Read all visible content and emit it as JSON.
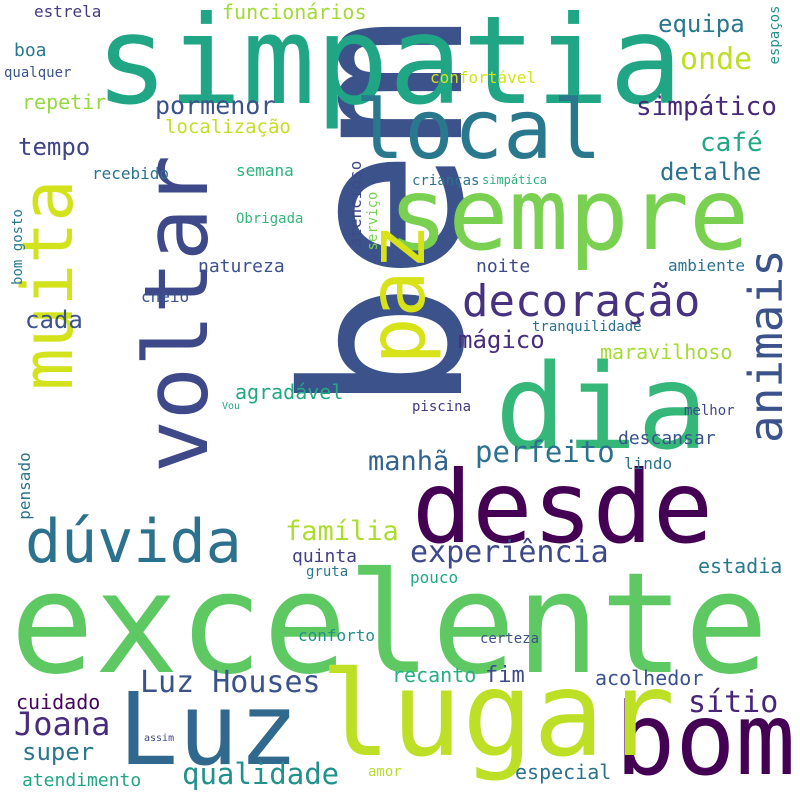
{
  "words": [
    {
      "text": "bem",
      "color": "#3b528b"
    },
    {
      "text": "excelente",
      "color": "#5ec962"
    },
    {
      "text": "simpatia",
      "color": "#21a685"
    },
    {
      "text": "sempre",
      "color": "#7ad151"
    },
    {
      "text": "dia",
      "color": "#35b779"
    },
    {
      "text": "desde",
      "color": "#440154"
    },
    {
      "text": "local",
      "color": "#2a788e"
    },
    {
      "text": "bom",
      "color": "#440154"
    },
    {
      "text": "lugar",
      "color": "#bddf26"
    },
    {
      "text": "Luz",
      "color": "#31688e"
    },
    {
      "text": "muita",
      "color": "#d2e21b"
    },
    {
      "text": "voltar",
      "color": "#3e4989"
    },
    {
      "text": "paz",
      "color": "#d8e219"
    },
    {
      "text": "dúvida",
      "color": "#2c728e"
    },
    {
      "text": "decoração",
      "color": "#46327e"
    },
    {
      "text": "animais",
      "color": "#3b528b"
    },
    {
      "text": "experiência",
      "color": "#3e4989"
    },
    {
      "text": "Luz Houses",
      "color": "#3b528b"
    },
    {
      "text": "Joana",
      "color": "#472d7b"
    },
    {
      "text": "qualidade",
      "color": "#21918c"
    },
    {
      "text": "perfeito",
      "color": "#2c728e"
    },
    {
      "text": "família",
      "color": "#addc30"
    },
    {
      "text": "manhã",
      "color": "#33638d"
    },
    {
      "text": "simpático",
      "color": "#482878"
    },
    {
      "text": "pormenor",
      "color": "#3b528b"
    },
    {
      "text": "café",
      "color": "#22a884"
    },
    {
      "text": "onde",
      "color": "#bddf26"
    },
    {
      "text": "equipa",
      "color": "#2a788e"
    },
    {
      "text": "detalhe",
      "color": "#2c728e"
    },
    {
      "text": "localização",
      "color": "#c2df23"
    },
    {
      "text": "funcionários",
      "color": "#a2da37"
    },
    {
      "text": "tempo",
      "color": "#414487"
    },
    {
      "text": "repetir",
      "color": "#95d840"
    },
    {
      "text": "mágico",
      "color": "#472c7a"
    },
    {
      "text": "maravilhoso",
      "color": "#a5db36"
    },
    {
      "text": "cada",
      "color": "#3b528b"
    },
    {
      "text": "super",
      "color": "#2a788e"
    },
    {
      "text": "cuidado",
      "color": "#450559"
    },
    {
      "text": "atendimento",
      "color": "#21a685"
    },
    {
      "text": "sítio",
      "color": "#482677"
    },
    {
      "text": "acolhedor",
      "color": "#3b528b"
    },
    {
      "text": "recanto",
      "color": "#28ae80"
    },
    {
      "text": "fim",
      "color": "#3e4989"
    },
    {
      "text": "especial",
      "color": "#2c728e"
    },
    {
      "text": "estadia",
      "color": "#2a788e"
    },
    {
      "text": "descansar",
      "color": "#3b528b"
    },
    {
      "text": "quinta",
      "color": "#433e85"
    },
    {
      "text": "agradável",
      "color": "#22a884"
    },
    {
      "text": "natureza",
      "color": "#3b528b"
    },
    {
      "text": "ambiente",
      "color": "#2c728e"
    },
    {
      "text": "noite",
      "color": "#3e4989"
    },
    {
      "text": "confortável",
      "color": "#d2e21b"
    },
    {
      "text": "pensado",
      "color": "#2c728e"
    },
    {
      "text": "estrela",
      "color": "#443983"
    },
    {
      "text": "boa",
      "color": "#2a788e"
    },
    {
      "text": "qualquer",
      "color": "#3b528b"
    },
    {
      "text": "espaços",
      "color": "#21918c"
    },
    {
      "text": "serviço",
      "color": "#7ad151"
    },
    {
      "text": "atencioso",
      "color": "#3e4989"
    },
    {
      "text": "Obrigada",
      "color": "#35b779"
    },
    {
      "text": "semana",
      "color": "#2db27d"
    },
    {
      "text": "recebido",
      "color": "#2c728e"
    },
    {
      "text": "cheio",
      "color": "#3b528b"
    },
    {
      "text": "lindo",
      "color": "#2c728e"
    },
    {
      "text": "melhor",
      "color": "#3e4989"
    },
    {
      "text": "piscina",
      "color": "#443983"
    },
    {
      "text": "pouco",
      "color": "#22a884"
    },
    {
      "text": "gruta",
      "color": "#2a788e"
    },
    {
      "text": "conforto",
      "color": "#21918c"
    },
    {
      "text": "certeza",
      "color": "#3b528b"
    },
    {
      "text": "amor",
      "color": "#b5de2b"
    },
    {
      "text": "tranquilidade",
      "color": "#2c728e"
    },
    {
      "text": "crianças",
      "color": "#2c728e"
    },
    {
      "text": "simpática",
      "color": "#2db27d"
    },
    {
      "text": "bom gosto",
      "color": "#2a788e"
    },
    {
      "text": "Vou",
      "color": "#22a884"
    },
    {
      "text": "assim",
      "color": "#3e4989"
    }
  ]
}
